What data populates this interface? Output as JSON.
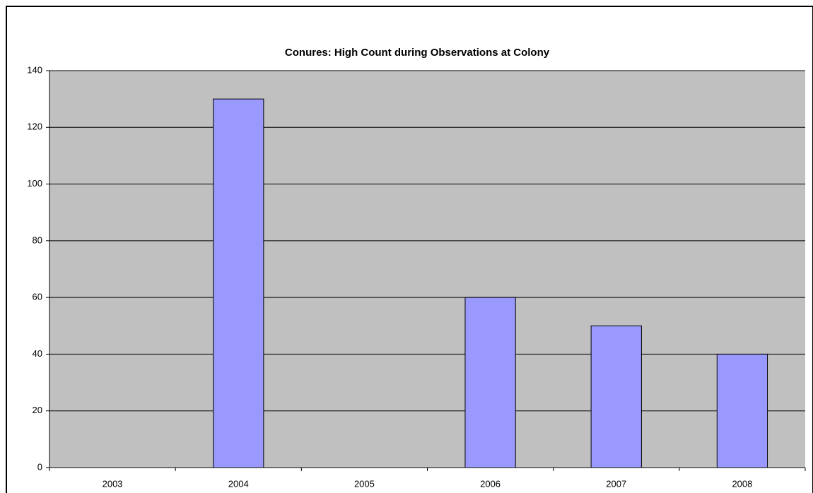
{
  "chart_data": {
    "type": "bar",
    "title": "Conures: High Count during Observations at Colony",
    "categories": [
      "2003",
      "2004",
      "2005",
      "2006",
      "2007",
      "2008"
    ],
    "values": [
      null,
      130,
      null,
      60,
      50,
      40
    ],
    "color": "#9999ff",
    "ylim": [
      0,
      140
    ],
    "yticks": [
      0,
      20,
      40,
      60,
      80,
      100,
      120,
      140
    ],
    "grid": true
  }
}
